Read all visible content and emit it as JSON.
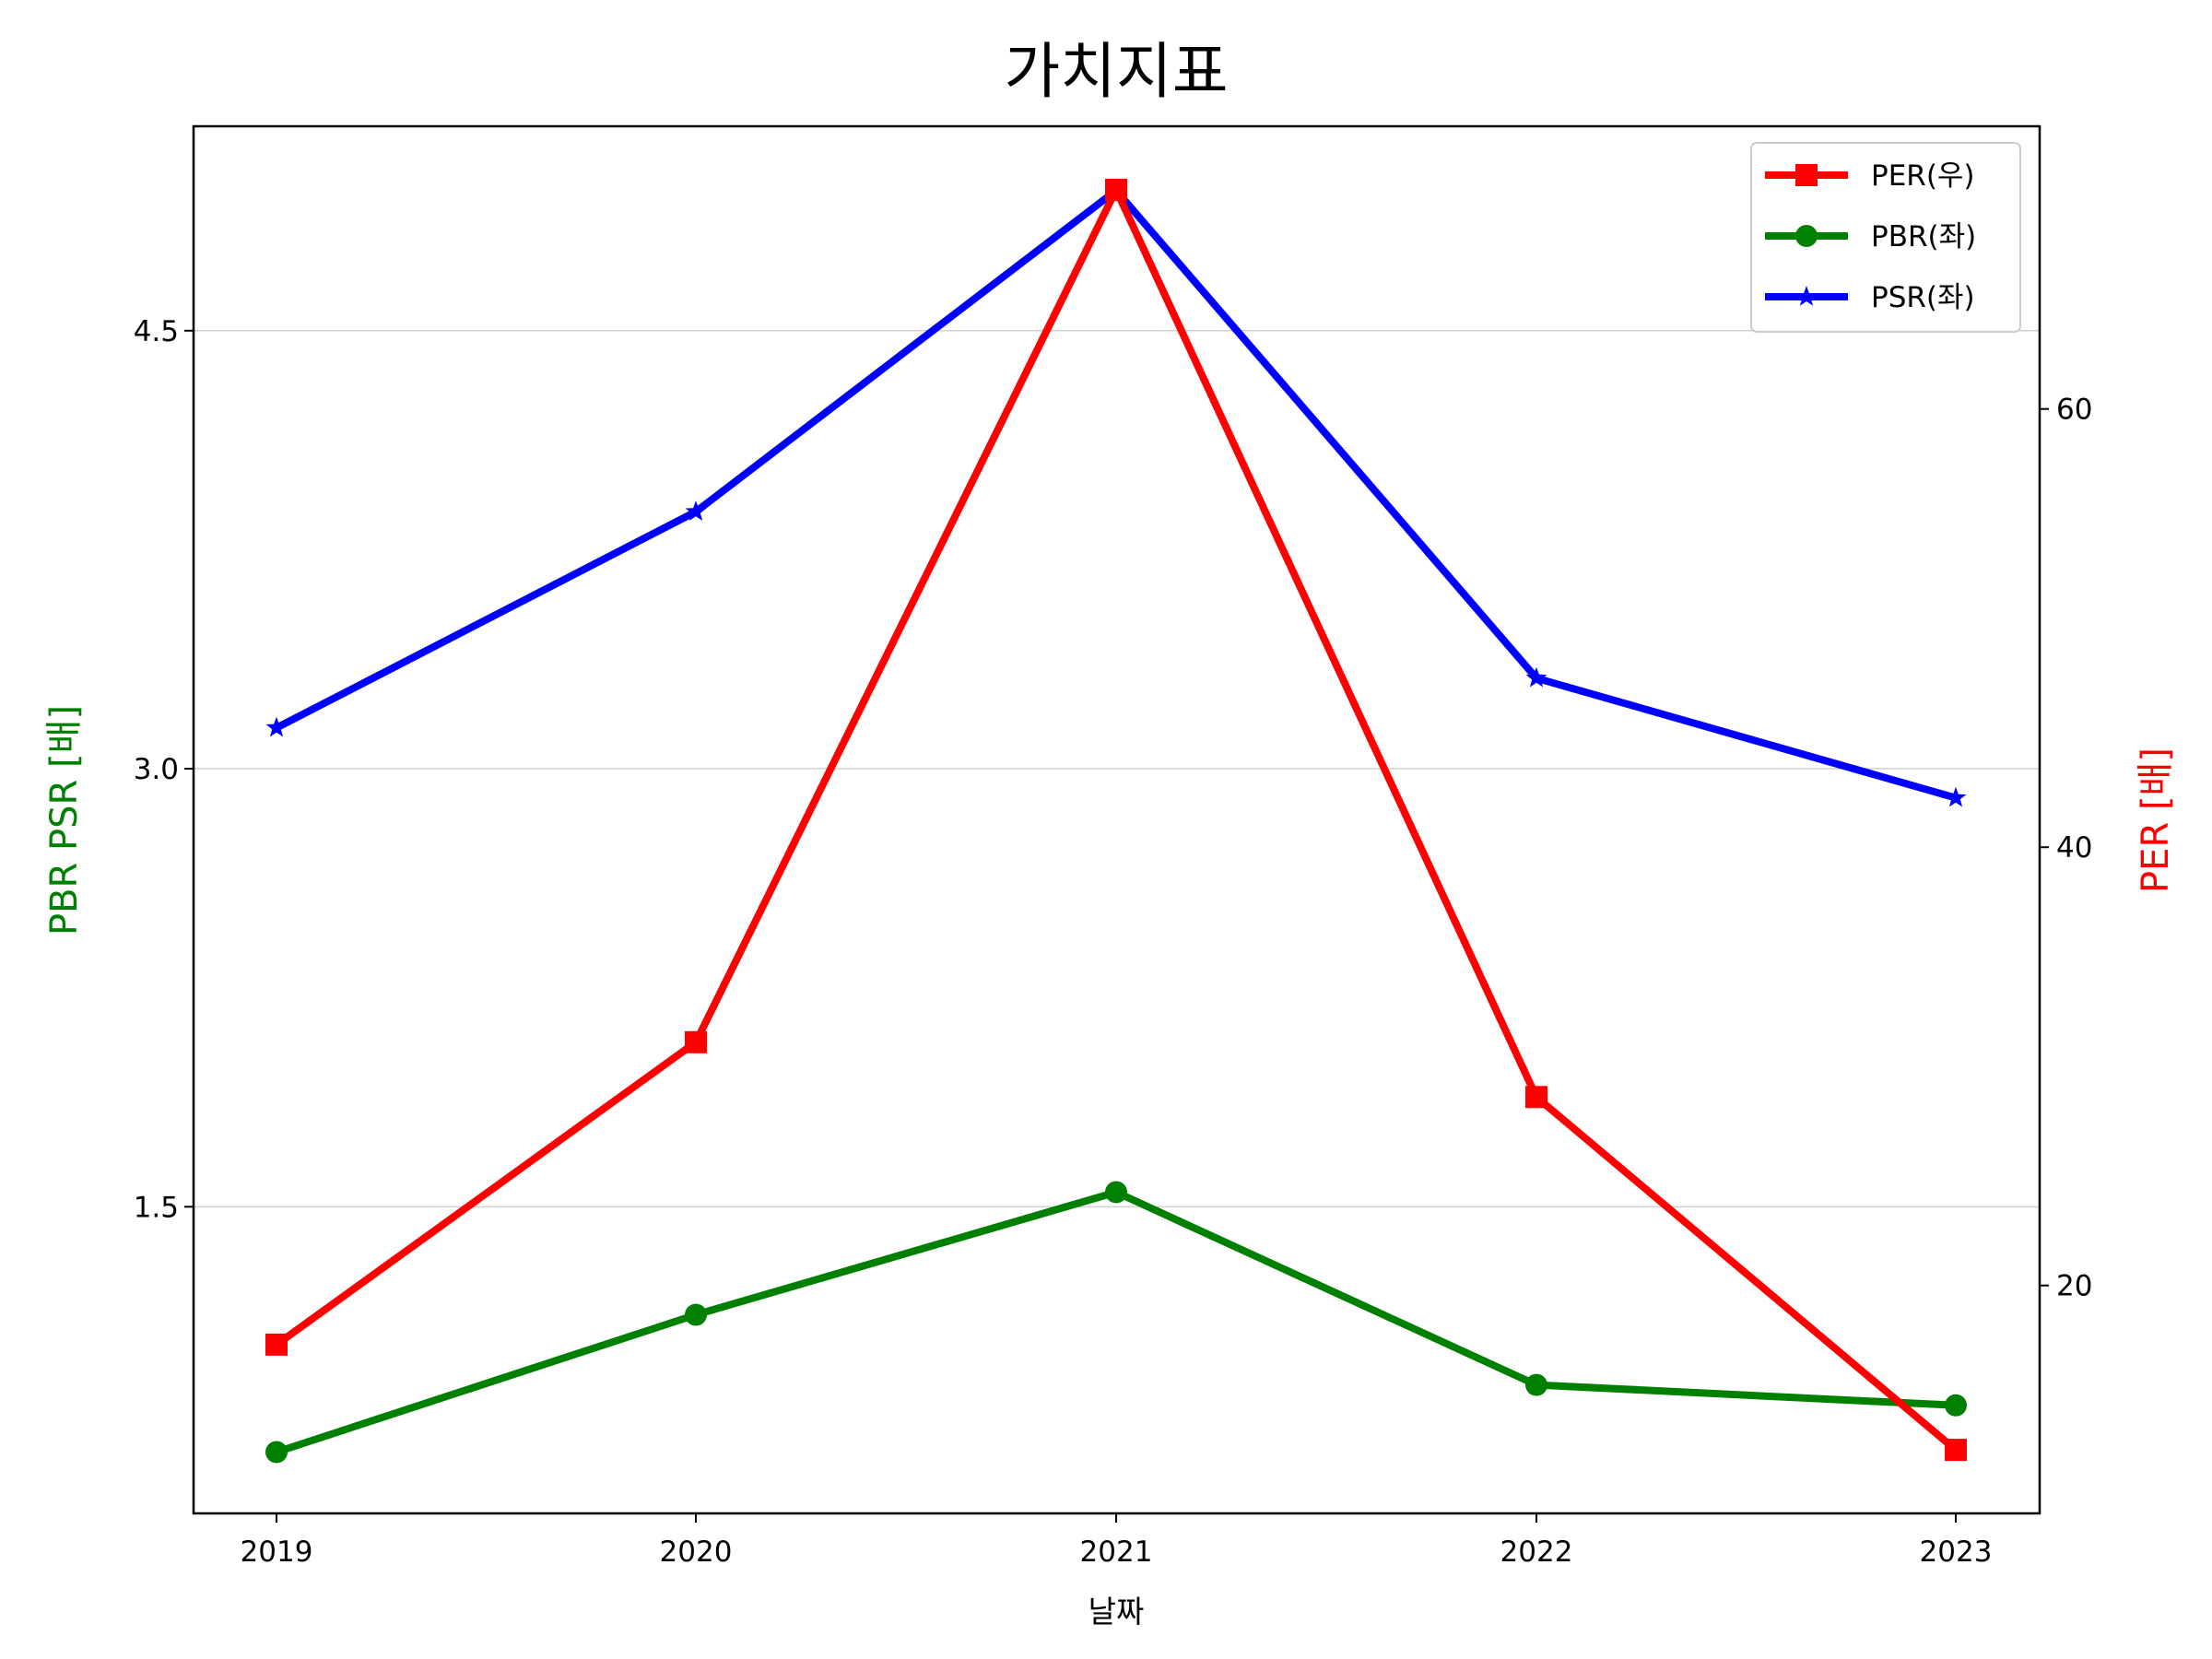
{
  "chart_data": {
    "type": "line",
    "title": "가치지표",
    "xlabel": "날짜",
    "ylabel_left": "PBR PSR [배]",
    "ylabel_right": "PER [배]",
    "categories": [
      "2019",
      "2020",
      "2021",
      "2022",
      "2023"
    ],
    "ylim_left": [
      0.45,
      5.2
    ],
    "ylim_right": [
      9.6,
      72.9
    ],
    "yticks_left": [
      1.5,
      3.0,
      4.5
    ],
    "yticks_left_labels": [
      "1.5",
      "3.0",
      "4.5"
    ],
    "yticks_right": [
      20,
      40,
      60
    ],
    "yticks_right_labels": [
      "20",
      "40",
      "60"
    ],
    "grid": "horizontal (left axis)",
    "legend_position": "top-right",
    "series": [
      {
        "name": "PER(우)",
        "axis": "right",
        "color": "#ff0000",
        "marker": "square",
        "values": [
          17.3,
          31.1,
          70.0,
          28.6,
          12.5
        ]
      },
      {
        "name": "PBR(좌)",
        "axis": "left",
        "color": "#008000",
        "marker": "circle",
        "values": [
          0.66,
          1.13,
          1.55,
          0.89,
          0.82
        ]
      },
      {
        "name": "PSR(좌)",
        "axis": "left",
        "color": "#0000ff",
        "marker": "star",
        "values": [
          3.14,
          3.88,
          4.98,
          3.31,
          2.9
        ]
      }
    ]
  }
}
